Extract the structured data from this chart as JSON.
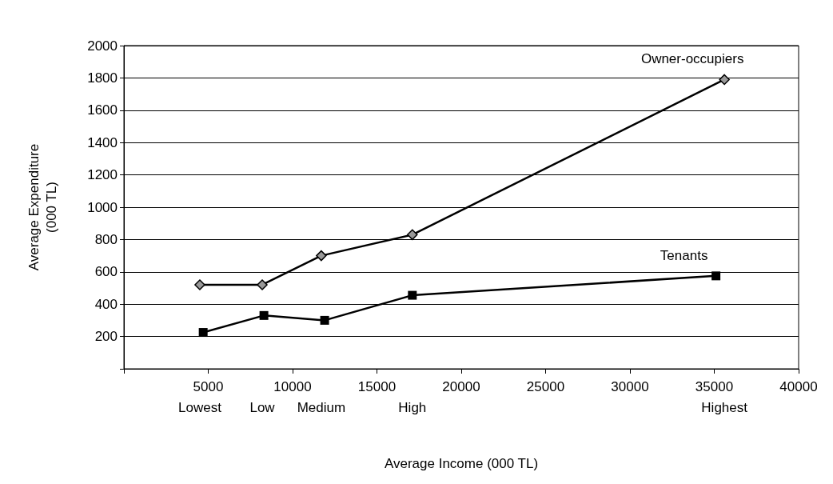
{
  "chart_data": {
    "type": "line",
    "xlabel": "Average Income (000 TL)",
    "ylabel": "Average Expenditure\n(000 TL)",
    "series": [
      {
        "name": "Owner-occupiers",
        "color": "#000000",
        "marker": "diamond",
        "x": [
          4500,
          8200,
          11700,
          17100,
          35600
        ],
        "values": [
          520,
          520,
          700,
          830,
          1790
        ]
      },
      {
        "name": "Tenants",
        "color": "#000000",
        "marker": "square",
        "x": [
          4700,
          8300,
          11900,
          17100,
          35100
        ],
        "values": [
          225,
          330,
          300,
          455,
          575
        ]
      }
    ],
    "xlim": [
      0,
      40000
    ],
    "xticks": [
      {
        "value": 0,
        "label": null
      },
      5000,
      10000,
      15000,
      20000,
      25000,
      30000,
      35000,
      40000
    ],
    "ylim": [
      0,
      2000
    ],
    "yticks": [
      {
        "value": 0,
        "label": null
      },
      200,
      400,
      600,
      800,
      1000,
      1200,
      1400,
      1600,
      1800,
      2000
    ],
    "annotations": [
      "Lowest",
      "Low",
      "Medium",
      "High",
      "Highest"
    ],
    "grid": "y",
    "legend": false,
    "line_style": "solid"
  }
}
